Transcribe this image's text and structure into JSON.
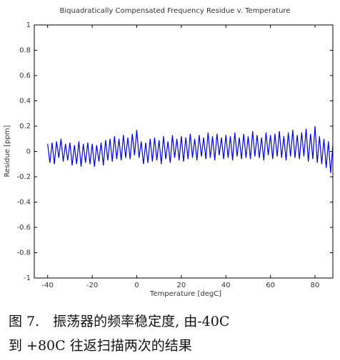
{
  "chart_data": {
    "type": "line",
    "title": "Biquadratically Compensated Frequency Residue v. Temperature",
    "xlabel": "Temperature [degC]",
    "ylabel": "Residue [ppm]",
    "xlim": [
      -46,
      88
    ],
    "ylim": [
      -1,
      1
    ],
    "xticks": [
      -40,
      -20,
      0,
      20,
      40,
      60,
      80
    ],
    "yticks": [
      -1,
      -0.8,
      -0.6,
      -0.4,
      -0.2,
      0,
      0.2,
      0.4,
      0.6,
      0.8,
      1
    ],
    "series": [
      {
        "color": "#0000ee",
        "x": [
          -40,
          -39,
          -38,
          -37,
          -36,
          -35,
          -34,
          -33,
          -32,
          -31,
          -30,
          -29,
          -28,
          -27,
          -26,
          -25,
          -24,
          -23,
          -22,
          -21,
          -20,
          -19,
          -18,
          -17,
          -16,
          -15,
          -14,
          -13,
          -12,
          -11,
          -10,
          -9,
          -8,
          -7,
          -6,
          -5,
          -4,
          -3,
          -2,
          -1,
          0,
          1,
          2,
          3,
          4,
          5,
          6,
          7,
          8,
          9,
          10,
          11,
          12,
          13,
          14,
          15,
          16,
          17,
          18,
          19,
          20,
          21,
          22,
          23,
          24,
          25,
          26,
          27,
          28,
          29,
          30,
          31,
          32,
          33,
          34,
          35,
          36,
          37,
          38,
          39,
          40,
          41,
          42,
          43,
          44,
          45,
          46,
          47,
          48,
          49,
          50,
          51,
          52,
          53,
          54,
          55,
          56,
          57,
          58,
          59,
          60,
          61,
          62,
          63,
          64,
          65,
          66,
          67,
          68,
          69,
          70,
          71,
          72,
          73,
          74,
          75,
          76,
          77,
          78,
          79,
          80,
          81,
          82,
          83,
          84,
          85,
          86,
          87,
          88
        ],
        "values": [
          0.06,
          -0.09,
          0.07,
          -0.1,
          0.08,
          -0.05,
          0.1,
          -0.08,
          0.06,
          -0.07,
          0.07,
          -0.11,
          0.05,
          -0.1,
          0.08,
          -0.12,
          0.06,
          -0.09,
          0.07,
          -0.1,
          0.06,
          -0.12,
          0.05,
          -0.08,
          0.07,
          -0.11,
          0.09,
          -0.07,
          0.1,
          -0.08,
          0.12,
          -0.06,
          0.1,
          -0.07,
          0.13,
          -0.05,
          0.11,
          -0.06,
          0.14,
          -0.03,
          0.17,
          -0.05,
          0.08,
          -0.1,
          0.07,
          -0.09,
          0.1,
          -0.08,
          0.11,
          -0.07,
          0.09,
          -0.1,
          0.12,
          -0.06,
          0.08,
          -0.09,
          0.13,
          -0.05,
          0.1,
          -0.07,
          0.12,
          -0.08,
          0.11,
          -0.06,
          0.14,
          -0.05,
          0.1,
          -0.07,
          0.13,
          -0.04,
          0.11,
          -0.06,
          0.15,
          -0.05,
          0.12,
          -0.07,
          0.14,
          -0.03,
          0.11,
          -0.06,
          0.13,
          -0.05,
          0.12,
          -0.07,
          0.15,
          -0.04,
          0.11,
          -0.06,
          0.14,
          -0.05,
          0.12,
          -0.06,
          0.16,
          -0.04,
          0.13,
          -0.05,
          0.11,
          -0.07,
          0.15,
          -0.03,
          0.13,
          -0.06,
          0.14,
          -0.04,
          0.16,
          -0.05,
          0.12,
          -0.07,
          0.15,
          -0.04,
          0.17,
          -0.05,
          0.13,
          -0.06,
          0.15,
          -0.04,
          0.18,
          -0.08,
          0.14,
          -0.06,
          0.2,
          -0.09,
          0.12,
          -0.1,
          0.1,
          -0.13,
          0.08,
          -0.17,
          0.05
        ]
      }
    ]
  },
  "caption": [
    "图 7.　振荡器的频率稳定度, 由-40C",
    "到 +80C 往返扫描两次的结果"
  ]
}
